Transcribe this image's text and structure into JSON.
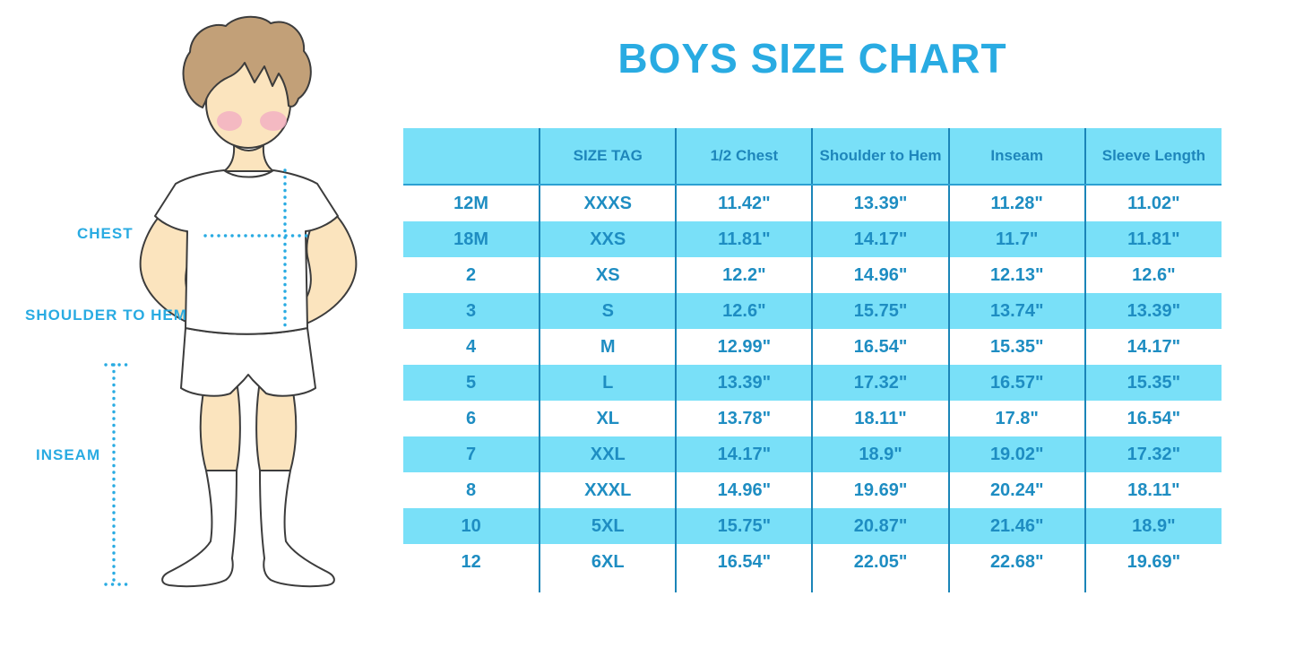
{
  "title": "BOYS SIZE CHART",
  "figure": {
    "description": "boy-with-measurement-lines",
    "labels": {
      "chest": "CHEST",
      "shoulder_to_hem": "SHOULDER TO HEM",
      "inseam": "INSEAM"
    }
  },
  "chart_data": {
    "type": "table",
    "title": "BOYS SIZE CHART",
    "columns": [
      "",
      "SIZE TAG",
      "1/2 Chest",
      "Shoulder to Hem",
      "Inseam",
      "Sleeve Length"
    ],
    "rows": [
      [
        "12M",
        "XXXS",
        "11.42\"",
        "13.39\"",
        "11.28\"",
        "11.02\""
      ],
      [
        "18M",
        "XXS",
        "11.81\"",
        "14.17\"",
        "11.7\"",
        "11.81\""
      ],
      [
        "2",
        "XS",
        "12.2\"",
        "14.96\"",
        "12.13\"",
        "12.6\""
      ],
      [
        "3",
        "S",
        "12.6\"",
        "15.75\"",
        "13.74\"",
        "13.39\""
      ],
      [
        "4",
        "M",
        "12.99\"",
        "16.54\"",
        "15.35\"",
        "14.17\""
      ],
      [
        "5",
        "L",
        "13.39\"",
        "17.32\"",
        "16.57\"",
        "15.35\""
      ],
      [
        "6",
        "XL",
        "13.78\"",
        "18.11\"",
        "17.8\"",
        "16.54\""
      ],
      [
        "7",
        "XXL",
        "14.17\"",
        "18.9\"",
        "19.02\"",
        "17.32\""
      ],
      [
        "8",
        "XXXL",
        "14.96\"",
        "19.69\"",
        "20.24\"",
        "18.11\""
      ],
      [
        "10",
        "5XL",
        "15.75\"",
        "20.87\"",
        "21.46\"",
        "18.9\""
      ],
      [
        "12",
        "6XL",
        "16.54\"",
        "22.05\"",
        "22.68\"",
        "19.69\""
      ]
    ],
    "striped_row_indices": [
      1,
      3,
      5,
      7,
      9
    ],
    "grid": "vertical-separators-only",
    "legend_position": "none"
  },
  "colors": {
    "accent": "#29ABE2",
    "stripe_bg": "#79E0F8",
    "table_header_text": "#1E86BB",
    "table_value_text": "#1E8DC2",
    "table_border": "#1B85B8",
    "skin": "#FBE4BE",
    "hair": "#C2A078",
    "blush": "#F3AEC3"
  }
}
